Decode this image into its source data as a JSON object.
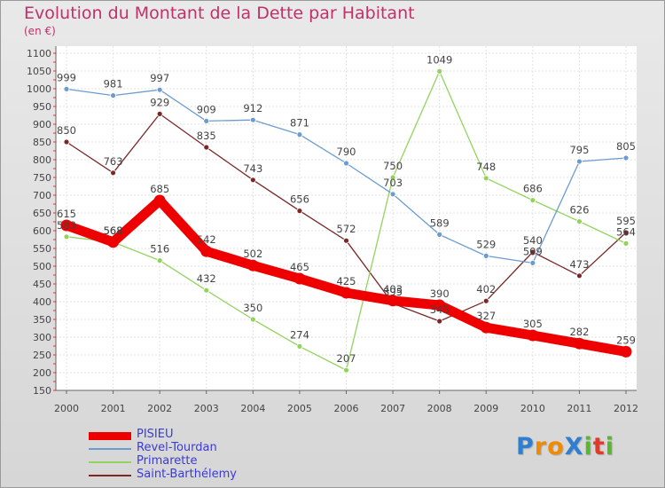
{
  "header": {
    "title": "Evolution du Montant de la Dette par Habitant",
    "subtitle": "(en €)"
  },
  "logo": {
    "text": "ProXiti",
    "letter_colors": [
      "#2e7fd1",
      "#f08a00",
      "#f08a00",
      "#2e7fd1",
      "#5bb531",
      "#e23a2a",
      "#5bb531"
    ]
  },
  "chart_data": {
    "type": "line",
    "title": "Evolution du Montant de la Dette par Habitant",
    "subtitle": "(en €)",
    "xlabel": "",
    "ylabel": "",
    "x": [
      "2000",
      "2001",
      "2002",
      "2003",
      "2004",
      "2005",
      "2006",
      "2007",
      "2008",
      "2009",
      "2010",
      "2011",
      "2012"
    ],
    "ylim": [
      150,
      1100
    ],
    "yticks": [
      150,
      200,
      250,
      300,
      350,
      400,
      450,
      500,
      550,
      600,
      650,
      700,
      750,
      800,
      850,
      900,
      950,
      1000,
      1050,
      1100
    ],
    "grid": true,
    "legend_position": "bottom-left",
    "series": [
      {
        "name": "Saint-Barthélemy",
        "color": "#7a2727",
        "values": [
          850,
          763,
          929,
          835,
          743,
          656,
          572,
          395,
          345,
          402,
          540,
          473,
          595
        ],
        "labels": [
          "850",
          "763",
          "929",
          "835",
          "743",
          "656",
          "572",
          "395",
          "345",
          "402",
          "540",
          "473",
          "595"
        ]
      },
      {
        "name": "Primarette",
        "color": "#93d35d",
        "values": [
          583,
          568,
          516,
          432,
          350,
          274,
          207,
          750,
          1049,
          748,
          686,
          626,
          564
        ],
        "labels": [
          "583",
          "568",
          "516",
          "432",
          "350",
          "274",
          "207",
          "750",
          "1049",
          "748",
          "686",
          "626",
          "564"
        ]
      },
      {
        "name": "Revel-Tourdan",
        "color": "#6b9cd0",
        "values": [
          999,
          981,
          997,
          909,
          912,
          871,
          790,
          703,
          589,
          529,
          509,
          795,
          805
        ],
        "labels": [
          "999",
          "981",
          "997",
          "909",
          "912",
          "871",
          "790",
          "703",
          "589",
          "529",
          "509",
          "795",
          "805"
        ]
      },
      {
        "name": "PISIEU",
        "color": "#ee0000",
        "values": [
          615,
          568,
          685,
          542,
          502,
          465,
          425,
          403,
          390,
          327,
          305,
          282,
          259
        ],
        "labels": [
          "615",
          "568",
          "685",
          "542",
          "502",
          "465",
          "425",
          "403",
          "390",
          "327",
          "305",
          "282",
          "259"
        ]
      }
    ],
    "legend_order": [
      "PISIEU",
      "Revel-Tourdan",
      "Primarette",
      "Saint-Barthélemy"
    ]
  }
}
